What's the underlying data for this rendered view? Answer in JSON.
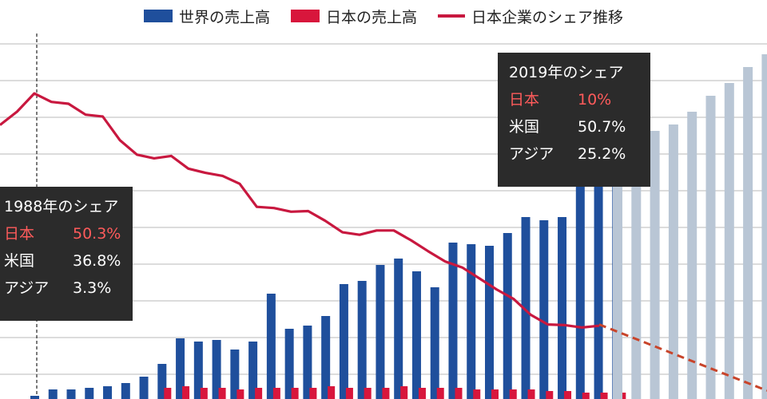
{
  "legend": {
    "world_sales": "世界の売上高",
    "japan_sales": "日本の売上高",
    "japan_share": "日本企業のシェア推移"
  },
  "colors": {
    "world_bar": "#1f4f9c",
    "japan_bar": "#d8163c",
    "share_line": "#c8183f",
    "forecast_bar": "#b9c6d5",
    "forecast_line": "#c8442a",
    "annotation_bg": "#2b2b2b",
    "annotation_japan_text": "#ff5b5b",
    "grid": "#c6c6c6"
  },
  "annotations": {
    "a1988": {
      "title": "1988年のシェア",
      "rows": [
        {
          "label": "日本",
          "value": "50.3%"
        },
        {
          "label": "米国",
          "value": "36.8%"
        },
        {
          "label": "アジア",
          "value": "3.3%"
        }
      ]
    },
    "a2019": {
      "title": "2019年のシェア",
      "rows": [
        {
          "label": "日本",
          "value": "10%"
        },
        {
          "label": "米国",
          "value": "50.7%"
        },
        {
          "label": "アジア",
          "value": "25.2%"
        }
      ]
    }
  },
  "chart_data": {
    "type": "bar",
    "title": "",
    "xlabel": "",
    "ylabel": "",
    "grid": true,
    "legend_position": "top",
    "note": "values estimated relative to a 0-100 sales scale and a 0-60 share scale; axes are not printed",
    "sales_scale": [
      0,
      100
    ],
    "share_scale": [
      0,
      60
    ],
    "reference_years": [
      1988,
      2019
    ],
    "series": [
      {
        "name": "世界の売上高",
        "values": [
          1,
          3,
          3,
          3.5,
          4,
          5,
          7,
          11,
          19,
          18,
          18.5,
          15.5,
          18,
          33,
          22,
          23,
          26,
          36,
          37,
          42,
          44,
          40,
          35,
          49,
          48.5,
          48,
          52,
          57,
          56,
          57,
          70,
          79,
          71
        ]
      },
      {
        "name": "日本の売上高",
        "values": [
          0.5,
          1,
          1.5,
          2,
          2.5,
          3.5,
          3.5,
          3.5,
          4,
          3.5,
          3.5,
          3,
          3.5,
          3.5,
          3.5,
          3.5,
          4,
          3.5,
          3.5,
          3.5,
          4,
          3.5,
          3.5,
          3.5,
          3,
          3,
          3,
          3,
          2.5,
          2.5,
          2,
          2,
          2
        ]
      },
      {
        "name": "日本企業のシェア推移",
        "values": [
          46.5,
          48.7,
          51.7,
          50.3,
          50.0,
          48.2,
          47.9,
          44.0,
          41.6,
          41.0,
          41.4,
          39.3,
          38.6,
          38.1,
          36.8,
          33.0,
          32.8,
          32.2,
          32.3,
          30.7,
          28.8,
          28.4,
          29.1,
          29.1,
          27.5,
          25.7,
          24.0,
          23.0,
          21.2,
          19.4,
          17.8,
          15.2,
          13.6,
          13.5,
          13.1,
          13.4
        ]
      },
      {
        "name": "forecast_sales",
        "values": [
          74,
          81,
          84,
          86,
          90,
          95,
          99,
          104,
          108
        ]
      },
      {
        "name": "forecast_share",
        "values": [
          13.6,
          2.7
        ]
      }
    ]
  }
}
